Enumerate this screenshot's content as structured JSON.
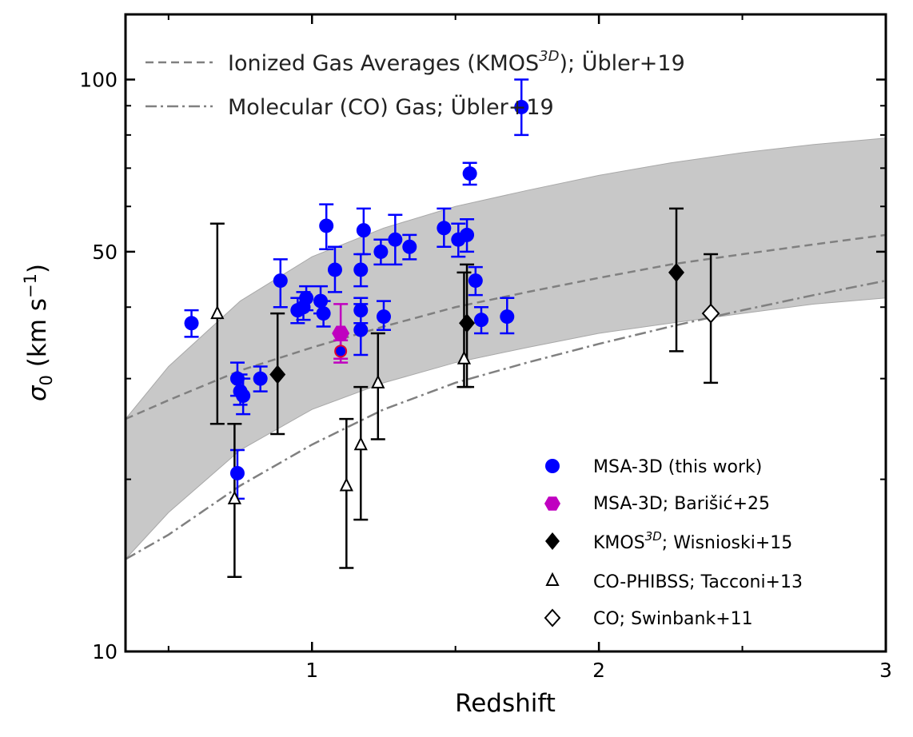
{
  "chart_data": {
    "type": "scatter",
    "xlabel": "Redshift",
    "ylabel": "σ0 (km s−1)",
    "ylabel_parts": {
      "sym": "σ",
      "sub": "0",
      "unit": " (km s",
      "sup": "−1",
      "close": ")"
    },
    "xlim": [
      0.35,
      3.0
    ],
    "ylim": [
      10,
      130
    ],
    "yscale": "log",
    "x_ticks": [
      1,
      2,
      3
    ],
    "x_tick_labels": [
      "1",
      "2",
      "3"
    ],
    "y_ticks": [
      10,
      50,
      100
    ],
    "y_tick_labels": [
      "10",
      "50",
      "100"
    ],
    "top_legend": [
      {
        "name": "ionized",
        "style": "dashed",
        "color": "#808080",
        "pre": "Ionized Gas Averages (KMOS",
        "sup": "3D",
        "post": "); Übler+19"
      },
      {
        "name": "molecular",
        "style": "dashdot",
        "color": "#808080",
        "label": "Molecular (CO) Gas; Übler+19"
      }
    ],
    "legend": [
      {
        "name": "msa3d",
        "marker": "circle",
        "color": "#0000ff",
        "label": "MSA-3D (this work)"
      },
      {
        "name": "barisic",
        "marker": "hexagon",
        "color": "#c000c0",
        "label": "MSA-3D; Barišić+25"
      },
      {
        "name": "kmos",
        "marker": "diamond",
        "color": "#000000",
        "pre": "KMOS",
        "sup": "3D",
        "post": "; Wisnioski+15"
      },
      {
        "name": "phibss",
        "marker": "triangle-open",
        "color": "#000000",
        "label": "CO-PHIBSS; Tacconi+13"
      },
      {
        "name": "swinbank",
        "marker": "diamond-open",
        "color": "#000000",
        "label": "CO; Swinbank+11"
      }
    ],
    "band": {
      "x": [
        0.35,
        0.5,
        0.75,
        1.0,
        1.25,
        1.5,
        1.75,
        2.0,
        2.25,
        2.5,
        2.75,
        3.0
      ],
      "lower": [
        14.5,
        17.5,
        22.5,
        26.5,
        29.5,
        32.0,
        34.0,
        36.0,
        37.5,
        39.0,
        40.5,
        41.5
      ],
      "upper": [
        25.5,
        31.5,
        41.0,
        49.0,
        55.0,
        60.0,
        64.0,
        68.0,
        71.5,
        74.5,
        77.0,
        79.0
      ]
    },
    "ionized_curve": {
      "x": [
        0.35,
        0.5,
        0.75,
        1.0,
        1.25,
        1.5,
        1.75,
        2.0,
        2.25,
        2.5,
        2.75,
        3.0
      ],
      "y": [
        25.5,
        27.5,
        31.0,
        34.0,
        37.0,
        40.0,
        42.5,
        45.0,
        47.5,
        49.5,
        51.5,
        53.5
      ]
    },
    "molecular_curve": {
      "x": [
        0.35,
        0.5,
        0.75,
        1.0,
        1.25,
        1.5,
        1.75,
        2.0,
        2.25,
        2.5,
        2.75,
        3.0
      ],
      "y": [
        14.5,
        16.0,
        19.5,
        23.0,
        26.5,
        29.5,
        32.0,
        34.5,
        37.0,
        39.5,
        42.0,
        44.5
      ]
    },
    "series": [
      {
        "name": "MSA-3D (this work)",
        "points": [
          {
            "x": 0.58,
            "y": 37.5,
            "lo": 35.5,
            "hi": 39.5
          },
          {
            "x": 0.74,
            "y": 30.0,
            "lo": 28.0,
            "hi": 32.0
          },
          {
            "x": 0.75,
            "y": 28.5,
            "lo": 27.0,
            "hi": 30.5
          },
          {
            "x": 0.76,
            "y": 28.0,
            "lo": 26.0,
            "hi": 30.0
          },
          {
            "x": 0.74,
            "y": 20.5,
            "lo": 18.5,
            "hi": 22.5
          },
          {
            "x": 0.82,
            "y": 30.0,
            "lo": 28.5,
            "hi": 31.5
          },
          {
            "x": 0.89,
            "y": 44.5,
            "lo": 40.0,
            "hi": 48.5
          },
          {
            "x": 0.95,
            "y": 39.5,
            "lo": 37.5,
            "hi": 41.5
          },
          {
            "x": 0.97,
            "y": 40.0,
            "lo": 38.0,
            "hi": 42.5
          },
          {
            "x": 0.98,
            "y": 41.5,
            "lo": 39.5,
            "hi": 43.5
          },
          {
            "x": 1.03,
            "y": 41.0,
            "lo": 39.0,
            "hi": 43.5
          },
          {
            "x": 1.04,
            "y": 39.0,
            "lo": 37.0,
            "hi": 41.0
          },
          {
            "x": 1.05,
            "y": 55.5,
            "lo": 50.5,
            "hi": 60.5
          },
          {
            "x": 1.08,
            "y": 46.5,
            "lo": 42.5,
            "hi": 51.0
          },
          {
            "x": 1.17,
            "y": 39.5,
            "lo": 37.5,
            "hi": 41.5
          },
          {
            "x": 1.17,
            "y": 36.5,
            "lo": 33.0,
            "hi": 40.5
          },
          {
            "x": 1.17,
            "y": 46.5,
            "lo": 43.5,
            "hi": 49.5
          },
          {
            "x": 1.18,
            "y": 54.5,
            "lo": 49.5,
            "hi": 59.5
          },
          {
            "x": 1.24,
            "y": 50.0,
            "lo": 47.5,
            "hi": 52.5
          },
          {
            "x": 1.25,
            "y": 38.5,
            "lo": 36.5,
            "hi": 41.0
          },
          {
            "x": 1.29,
            "y": 52.5,
            "lo": 47.5,
            "hi": 58.0
          },
          {
            "x": 1.34,
            "y": 51.0,
            "lo": 48.5,
            "hi": 53.5
          },
          {
            "x": 1.46,
            "y": 55.0,
            "lo": 51.0,
            "hi": 59.5
          },
          {
            "x": 1.51,
            "y": 52.5,
            "lo": 49.0,
            "hi": 56.0
          },
          {
            "x": 1.54,
            "y": 53.5,
            "lo": 50.0,
            "hi": 57.0
          },
          {
            "x": 1.55,
            "y": 68.5,
            "lo": 65.5,
            "hi": 71.5
          },
          {
            "x": 1.57,
            "y": 44.5,
            "lo": 42.0,
            "hi": 47.0
          },
          {
            "x": 1.59,
            "y": 38.0,
            "lo": 36.0,
            "hi": 40.0
          },
          {
            "x": 1.68,
            "y": 38.5,
            "lo": 36.0,
            "hi": 41.5
          },
          {
            "x": 1.73,
            "y": 89.5,
            "lo": 80.0,
            "hi": 100.0
          }
        ]
      },
      {
        "name": "MSA-3D; Barišić+25",
        "points": [
          {
            "x": 1.1,
            "y": 36.0,
            "lo": 32.5,
            "hi": 40.5
          },
          {
            "x": 1.1,
            "y": 33.5,
            "lo": 32.0,
            "hi": 35.0
          }
        ]
      },
      {
        "name": "KMOS3D; Wisnioski+15",
        "points": [
          {
            "x": 0.88,
            "y": 30.5,
            "lo": 24.0,
            "hi": 39.0
          },
          {
            "x": 1.54,
            "y": 37.5,
            "lo": 29.0,
            "hi": 47.5
          },
          {
            "x": 2.27,
            "y": 46.0,
            "lo": 33.5,
            "hi": 59.5
          }
        ]
      },
      {
        "name": "CO-PHIBSS; Tacconi+13",
        "points": [
          {
            "x": 0.67,
            "y": 39.0,
            "lo": 25.0,
            "hi": 56.0
          },
          {
            "x": 0.73,
            "y": 18.5,
            "lo": 13.5,
            "hi": 25.0
          },
          {
            "x": 1.12,
            "y": 19.5,
            "lo": 14.0,
            "hi": 25.5
          },
          {
            "x": 1.17,
            "y": 23.0,
            "lo": 17.0,
            "hi": 29.0
          },
          {
            "x": 1.23,
            "y": 29.5,
            "lo": 23.5,
            "hi": 36.0
          },
          {
            "x": 1.53,
            "y": 32.5,
            "lo": 29.0,
            "hi": 46.0
          }
        ]
      },
      {
        "name": "CO; Swinbank+11",
        "points": [
          {
            "x": 2.39,
            "y": 39.0,
            "lo": 29.5,
            "hi": 49.5
          }
        ]
      }
    ]
  }
}
